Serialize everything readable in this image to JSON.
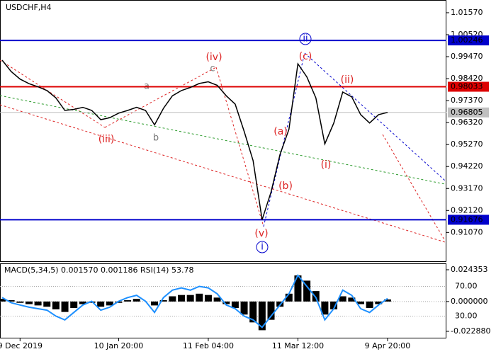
{
  "chart_data": [
    {
      "type": "line",
      "title": "USDCHF,H4",
      "color": "#000000",
      "values": [
        0.99303,
        0.9876,
        0.984,
        0.9818,
        0.9803,
        0.9785,
        0.975,
        0.969,
        0.9695,
        0.9705,
        0.969,
        0.9646,
        0.9655,
        0.9677,
        0.969,
        0.9705,
        0.969,
        0.9621,
        0.97,
        0.976,
        0.9785,
        0.98,
        0.9819,
        0.9827,
        0.981,
        0.976,
        0.972,
        0.959,
        0.945,
        0.9168,
        0.93,
        0.948,
        0.96,
        0.9913,
        0.985,
        0.975,
        0.953,
        0.963,
        0.9778,
        0.9755,
        0.967,
        0.963,
        0.967,
        0.96805
      ],
      "ylim": [
        0.8966,
        1.0211
      ],
      "yticks": [
        {
          "value": 1.0157,
          "label": "1.01570"
        },
        {
          "value": 1.0052,
          "label": "1.00520"
        },
        {
          "value": 0.9947,
          "label": "0.99470"
        },
        {
          "value": 0.9842,
          "label": "0.98420"
        },
        {
          "value": 0.9737,
          "label": "0.97370"
        },
        {
          "value": 0.9632,
          "label": "0.96320"
        },
        {
          "value": 0.9527,
          "label": "0.95270"
        },
        {
          "value": 0.9422,
          "label": "0.94220"
        },
        {
          "value": 0.9317,
          "label": "0.93170"
        },
        {
          "value": 0.9212,
          "label": "0.92120"
        },
        {
          "value": 0.9107,
          "label": "0.91070"
        }
      ],
      "levels": [
        {
          "value": 1.00246,
          "color": "#0000cc"
        },
        {
          "value": 0.98033,
          "color": "#dd0000"
        },
        {
          "value": 0.96805,
          "color": "#c0c0c0"
        },
        {
          "value": 0.91676,
          "color": "#0000cc"
        }
      ],
      "annotations": [
        "(iv)",
        "c",
        "a",
        "b",
        "(iii)",
        "(c)",
        "(ii)",
        "(a)",
        "(b)",
        "(i)",
        "(v)",
        "ii",
        "i"
      ]
    },
    {
      "type": "macd",
      "title": "MACD(5,34,5) 0.001570 0.001186 RSI(14) 53.78",
      "categories": [
        null,
        null,
        "9 Dec 2019",
        null,
        null,
        null,
        null,
        null,
        null,
        null,
        null,
        null,
        null,
        "10 Jan 20:00",
        null,
        null,
        null,
        null,
        null,
        null,
        null,
        null,
        null,
        "11 Feb 04:00",
        null,
        null,
        null,
        null,
        null,
        null,
        null,
        null,
        null,
        "11 Mar 12:00",
        null,
        null,
        null,
        null,
        null,
        null,
        null,
        null,
        null,
        "9 Apr 20:00"
      ],
      "series": [
        {
          "color": "#000000",
          "values": [
            0.002,
            0.001,
            -0.001,
            -0.002,
            -0.003,
            -0.004,
            -0.006,
            -0.008,
            -0.005,
            -0.002,
            -0.001,
            -0.004,
            -0.003,
            -0.001,
            0.001,
            0.002,
            0,
            -0.003,
            0.001,
            0.004,
            0.005,
            0.005,
            0.006,
            0.005,
            0.003,
            -0.002,
            -0.005,
            -0.01,
            -0.016,
            -0.022,
            -0.014,
            -0.004,
            0.006,
            0.02,
            0.016,
            0.008,
            -0.01,
            -0.006,
            0.004,
            0.003,
            -0.002,
            -0.005,
            -0.002,
            0.00157
          ]
        },
        {
          "color": "#1e90ff",
          "axis": "y2",
          "values": [
            55,
            48,
            45,
            42,
            40,
            38,
            30,
            25,
            35,
            45,
            50,
            38,
            42,
            50,
            55,
            58,
            50,
            35,
            55,
            65,
            68,
            65,
            70,
            68,
            60,
            45,
            40,
            30,
            25,
            15,
            30,
            45,
            60,
            85,
            70,
            55,
            25,
            40,
            65,
            58,
            40,
            35,
            45,
            53.78
          ]
        }
      ],
      "ylim": [
        -0.0283,
        0.0287
      ],
      "yticks": [
        0.024353,
        {
          "value": 0,
          "label": "0.000000"
        },
        {
          "value": -0.02288,
          "label": "-0.022880"
        }
      ],
      "y2lim": [
        0,
        100
      ],
      "y2ticks": [
        {
          "value": 70,
          "label": "70.00"
        },
        {
          "value": 30,
          "label": "30.00"
        }
      ]
    }
  ]
}
